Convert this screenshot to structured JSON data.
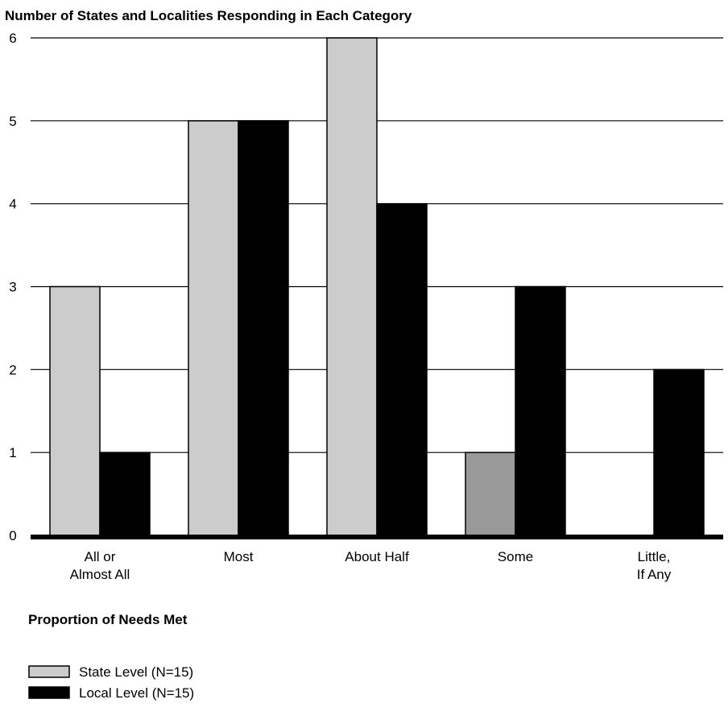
{
  "chart_data": {
    "type": "bar",
    "title": "Number of States and Localities Responding in Each Category",
    "xlabel": "Proportion of Needs Met",
    "ylabel": "",
    "ylim": [
      0,
      6
    ],
    "yticks": [
      "0",
      "1",
      "2",
      "3",
      "4",
      "5",
      "6"
    ],
    "grid": true,
    "categories": [
      [
        "All or",
        "Almost All"
      ],
      [
        "Most"
      ],
      [
        "About Half"
      ],
      [
        "Some"
      ],
      [
        "Little,",
        "If Any"
      ]
    ],
    "series": [
      {
        "name": "State Level (N=15)",
        "values": [
          3,
          5,
          6,
          1,
          0
        ],
        "color": "#cccccc"
      },
      {
        "name": "Local Level (N=15)",
        "values": [
          1,
          5,
          4,
          3,
          2
        ],
        "color": "#000000"
      }
    ],
    "highlight": {
      "series": 0,
      "index": 3,
      "color": "#999999"
    },
    "legend_position": "bottom-left"
  }
}
